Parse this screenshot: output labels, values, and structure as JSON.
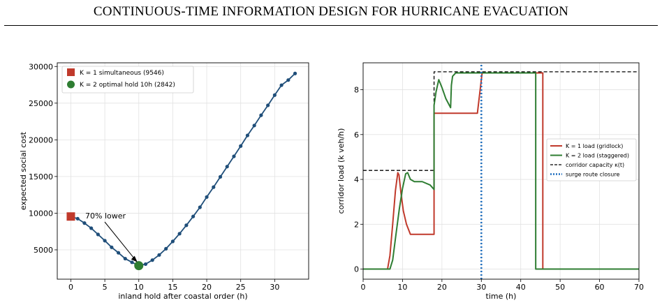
{
  "header": {
    "title": "CONTINUOUS-TIME INFORMATION DESIGN FOR HURRICANE EVACUATION"
  },
  "chart_data": [
    {
      "type": "line",
      "xlabel": "inland hold after coastal order  (h)",
      "ylabel": "expected social cost",
      "xlim": [
        -2,
        35
      ],
      "ylim": [
        1000,
        30500
      ],
      "xticks": [
        0,
        5,
        10,
        15,
        20,
        25,
        30
      ],
      "yticks": [
        5000,
        10000,
        15000,
        20000,
        25000,
        30000
      ],
      "grid": true,
      "legend_position": "top-left",
      "colors": {
        "curve": "#1f4e79",
        "k1": "#c0392b",
        "k2": "#2e7d32"
      },
      "series": [
        {
          "x": [
            0,
            1,
            2,
            3,
            4,
            5,
            6,
            7,
            8,
            9,
            10,
            11,
            12,
            13,
            14,
            15,
            16,
            17,
            18,
            19,
            20,
            21,
            22,
            23,
            24,
            25,
            26,
            27,
            28,
            29,
            30,
            31,
            32,
            33
          ],
          "values": [
            9546,
            9250,
            8650,
            7950,
            7100,
            6250,
            5350,
            4600,
            3800,
            3300,
            2842,
            3050,
            3600,
            4300,
            5150,
            6150,
            7200,
            8350,
            9550,
            10800,
            12200,
            13550,
            14950,
            16350,
            17750,
            19150,
            20600,
            21950,
            23350,
            24700,
            26100,
            27450,
            28150,
            29050
          ]
        }
      ],
      "markers": [
        {
          "label": "K = 1 simultaneous (9546)",
          "x": 0,
          "y": 9546,
          "shape": "square"
        },
        {
          "label": "K = 2 optimal hold 10h (2842)",
          "x": 10,
          "y": 2842,
          "shape": "circle"
        }
      ],
      "annotation": {
        "text": "70% lower",
        "x": 10,
        "y": 2842
      }
    },
    {
      "type": "line",
      "xlabel": "time (h)",
      "ylabel": "corridor load (k veh/h)",
      "xlim": [
        0,
        70
      ],
      "ylim": [
        -0.45,
        9.2
      ],
      "xticks": [
        0,
        10,
        20,
        30,
        40,
        50,
        60,
        70
      ],
      "yticks": [
        0,
        2,
        4,
        6,
        8
      ],
      "grid": true,
      "legend_position": "center-right",
      "colors": {
        "k1": "#c0392b",
        "k2": "#2e7d32",
        "capacity": "#000000",
        "closure": "#1f6fbf"
      },
      "series": [
        {
          "name": "K = 1 load (gridlock)",
          "x": [
            0,
            6.2,
            6.8,
            7.5,
            8.2,
            8.8,
            9.1,
            9.6,
            10.2,
            11,
            12,
            18,
            18,
            18.4,
            19,
            29,
            30.2,
            45.6,
            45.6,
            70
          ],
          "values": [
            0,
            0,
            0.6,
            2.0,
            3.5,
            4.3,
            4.2,
            3.4,
            2.6,
            2.0,
            1.55,
            1.55,
            6.95,
            6.95,
            6.95,
            6.95,
            8.75,
            8.75,
            0,
            0
          ]
        },
        {
          "name": "K = 2 load (staggered)",
          "x": [
            0,
            6.8,
            7.5,
            8.3,
            9.2,
            10,
            10.8,
            11.3,
            12,
            13,
            15,
            17,
            18,
            18,
            18.5,
            19.2,
            20,
            21,
            22.2,
            22.4,
            22.7,
            23.5,
            30,
            43.8,
            43.8,
            70
          ],
          "values": [
            0,
            0,
            0.4,
            1.5,
            2.7,
            3.6,
            4.25,
            4.3,
            4.0,
            3.9,
            3.9,
            3.75,
            3.55,
            7.3,
            7.9,
            8.45,
            8.1,
            7.6,
            7.2,
            8.2,
            8.6,
            8.75,
            8.75,
            8.75,
            0,
            0
          ]
        },
        {
          "name": "corridor capacity κ(t)",
          "x": [
            0,
            18,
            18,
            70
          ],
          "values": [
            4.4,
            4.4,
            8.8,
            8.8
          ]
        },
        {
          "name": "surge route closure",
          "x": [
            30,
            30
          ],
          "values": [
            -0.45,
            9.2
          ]
        }
      ]
    }
  ]
}
